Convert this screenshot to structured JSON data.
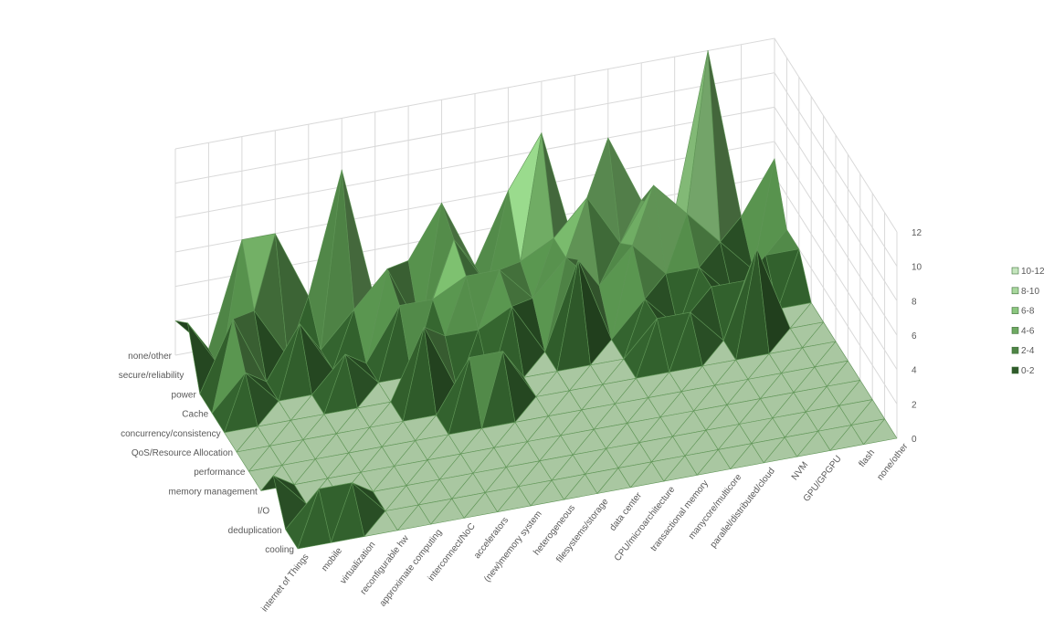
{
  "chart_data": {
    "type": "surface",
    "title": "",
    "zlim": [
      0,
      12
    ],
    "z_ticks": [
      "0",
      "2",
      "4",
      "6",
      "8",
      "10",
      "12"
    ],
    "x_categories": [
      "internet of Things",
      "mobile",
      "virtualization",
      "reconfigurable hw",
      "approximate computing",
      "interconnect/NoC",
      "accelerators",
      "(new)memory system",
      "heterogeneous",
      "filesystems/storage",
      "data center",
      "CPU/microarchitecture",
      "transactional memory",
      "manycore/multicore",
      "parallel/distributed/cloud",
      "NVM",
      "GPU/GPGPU",
      "flash",
      "none/other"
    ],
    "y_categories": [
      "cooling",
      "deduplication",
      "I/O",
      "memory management",
      "performance",
      "QoS/Resource Allocation",
      "concurrency/consistency",
      "Cache",
      "power",
      "secure/reliability",
      "none/other"
    ],
    "values": [
      [
        0,
        0,
        0,
        0,
        0,
        0,
        0,
        0,
        0,
        0,
        0,
        0,
        0,
        0,
        0,
        0,
        0,
        0,
        0
      ],
      [
        0,
        2,
        2,
        0,
        0,
        0,
        0,
        0,
        0,
        0,
        0,
        0,
        0,
        0,
        0,
        0,
        0,
        0,
        0
      ],
      [
        2,
        0,
        0,
        0,
        0,
        0,
        0,
        0,
        0,
        0,
        0,
        0,
        0,
        0,
        0,
        0,
        0,
        0,
        0
      ],
      [
        0,
        0,
        0,
        0,
        0,
        0,
        0,
        0,
        0,
        0,
        0,
        0,
        0,
        0,
        0,
        0,
        0,
        0,
        0
      ],
      [
        0,
        0,
        0,
        0,
        0,
        0,
        0,
        0,
        0,
        0,
        0,
        0,
        0,
        0,
        0,
        0,
        0,
        0,
        0
      ],
      [
        0,
        0,
        0,
        0,
        0,
        0,
        0,
        3,
        3,
        0,
        0,
        0,
        0,
        0,
        0,
        0,
        0,
        0,
        0
      ],
      [
        0,
        0,
        0,
        0,
        0,
        0,
        4,
        0,
        0,
        0,
        0,
        0,
        0,
        2,
        2,
        0,
        5,
        0,
        0
      ],
      [
        0,
        2,
        0,
        0,
        2,
        0,
        0,
        2,
        2,
        3,
        0,
        5,
        0,
        2,
        0,
        2,
        2,
        0,
        0
      ],
      [
        0,
        4,
        0,
        3,
        0,
        0,
        3,
        3,
        4,
        4,
        2,
        4,
        2,
        4,
        2,
        2,
        0,
        2,
        2
      ],
      [
        3,
        0,
        3,
        0,
        0,
        2,
        4,
        0,
        5,
        2,
        3,
        4,
        6,
        3,
        6,
        4,
        2,
        0,
        2
      ],
      [
        2,
        0,
        6,
        6,
        2,
        9,
        1,
        3,
        6,
        2,
        6,
        9,
        2,
        8,
        4,
        3,
        12,
        2,
        5
      ]
    ]
  },
  "legend": {
    "position": "right",
    "items": [
      {
        "label": "10-12",
        "color": "#c4e5bd"
      },
      {
        "label": "8-10",
        "color": "#a8d79d"
      },
      {
        "label": "6-8",
        "color": "#8bc67f"
      },
      {
        "label": "4-6",
        "color": "#6ea962"
      },
      {
        "label": "2-4",
        "color": "#4f8446"
      },
      {
        "label": "0-2",
        "color": "#2f5a2a"
      }
    ]
  },
  "colors": {
    "grid": "#d9d9d9",
    "edge": "#5f9556",
    "floor": "#a9c7a1"
  }
}
